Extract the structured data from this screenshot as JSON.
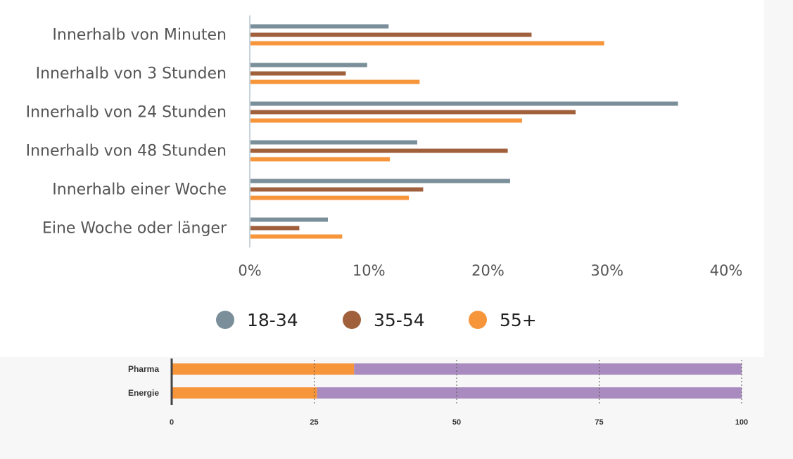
{
  "chart_data": [
    {
      "type": "bar",
      "orientation": "horizontal",
      "categories": [
        "Innerhalb von Minuten",
        "Innerhalb von 3 Stunden",
        "Innerhalb von 24 Stunden",
        "Innerhalb von 48 Stunden",
        "Innerhalb einer Woche",
        "Eine Woche oder länger"
      ],
      "series": [
        {
          "name": "18-34",
          "color": "#7a8f99",
          "values": [
            11.6,
            9.8,
            35.9,
            14.0,
            21.8,
            6.5
          ]
        },
        {
          "name": "35-54",
          "color": "#a0603c",
          "values": [
            23.6,
            8.0,
            27.3,
            21.6,
            14.5,
            4.1
          ]
        },
        {
          "name": "55+",
          "color": "#f7953b",
          "values": [
            29.7,
            14.2,
            22.8,
            11.7,
            13.3,
            7.7
          ]
        }
      ],
      "xlim": [
        0,
        40
      ],
      "xticks": [
        "0%",
        "10%",
        "20%",
        "30%",
        "40%"
      ],
      "grid": false,
      "legend_position": "bottom"
    },
    {
      "type": "bar",
      "orientation": "horizontal",
      "stacked": true,
      "categories": [
        "Pharma",
        "Energie"
      ],
      "series": [
        {
          "color": "#f7953b",
          "values": [
            32,
            25.5
          ]
        },
        {
          "color": "#a98bbf",
          "values": [
            68,
            74.5
          ]
        }
      ],
      "xlim": [
        0,
        100
      ],
      "xticks": [
        "0",
        "25",
        "50",
        "75",
        "100"
      ],
      "grid": true,
      "grid_style": "dotted"
    }
  ]
}
